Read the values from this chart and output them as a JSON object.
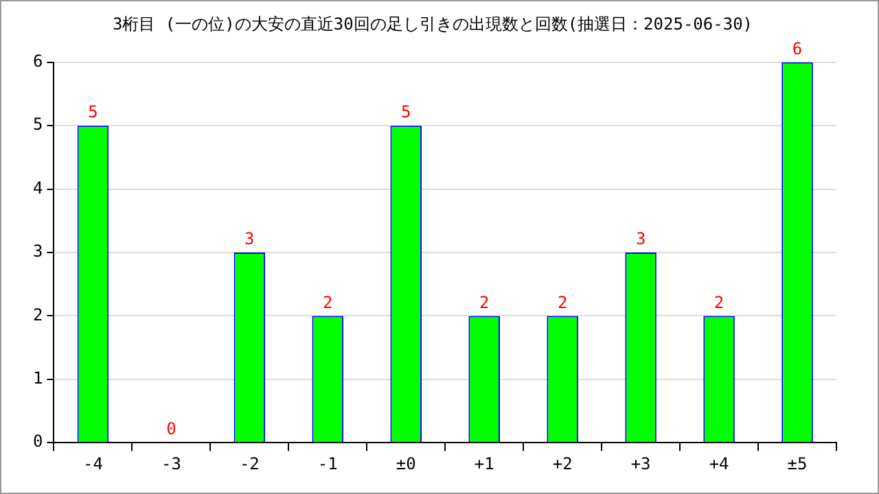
{
  "chart_data": {
    "type": "bar",
    "title": "3桁目 (一の位)の大安の直近30回の足し引きの出現数と回数(抽選日：2025-06-30)",
    "categories": [
      "-4",
      "-3",
      "-2",
      "-1",
      "±0",
      "+1",
      "+2",
      "+3",
      "+4",
      "±5"
    ],
    "values": [
      5,
      0,
      3,
      2,
      5,
      2,
      2,
      3,
      2,
      6
    ],
    "color": "#00ff00",
    "ylim": [
      0,
      6
    ],
    "yticks": [
      0,
      1,
      2,
      3,
      4,
      5,
      6
    ],
    "grid": "y",
    "data_labels": true,
    "legend": false
  }
}
